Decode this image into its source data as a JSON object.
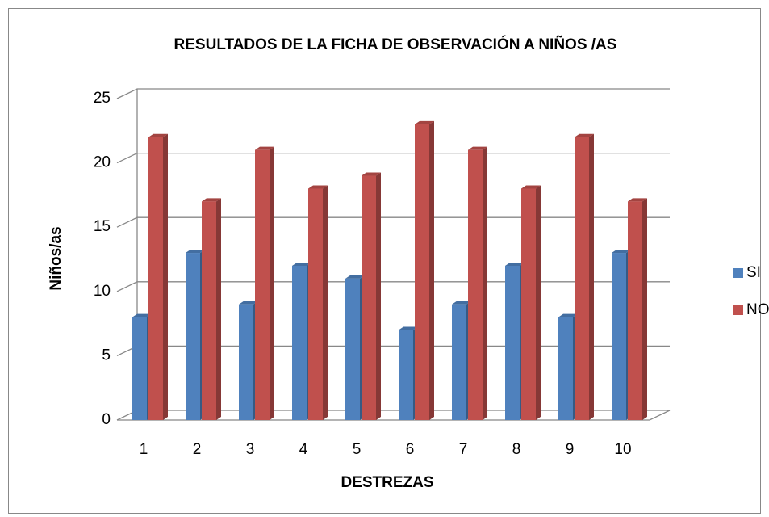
{
  "chart_data": {
    "type": "bar3d",
    "title": "RESULTADOS DE LA FICHA DE OBSERVACIÓN A  NIÑOS /AS",
    "x_label": "DESTREZAS",
    "y_label": "Niños/as",
    "categories": [
      "1",
      "2",
      "3",
      "4",
      "5",
      "6",
      "7",
      "8",
      "9",
      "10"
    ],
    "series": [
      {
        "name": "SI",
        "color": "#4f81bd",
        "values": [
          8,
          13,
          9,
          12,
          11,
          7,
          9,
          12,
          8,
          13
        ]
      },
      {
        "name": "NO",
        "color": "#c0504d",
        "values": [
          22,
          17,
          21,
          18,
          19,
          23,
          21,
          18,
          22,
          17
        ]
      }
    ],
    "ylim": [
      0,
      25
    ],
    "yticks": [
      0,
      5,
      10,
      15,
      20,
      25
    ],
    "grid": true,
    "legend": "right"
  }
}
